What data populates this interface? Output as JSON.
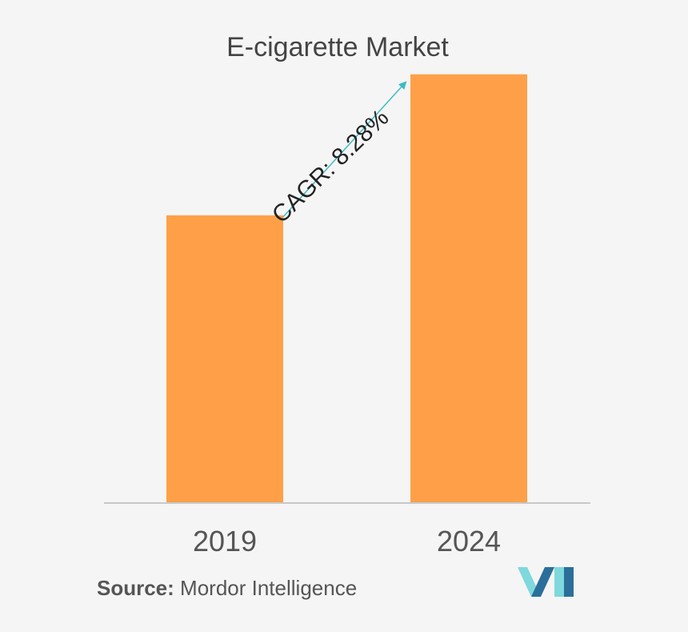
{
  "chart_data": {
    "type": "bar",
    "title": "E-cigarette Market",
    "categories": [
      "2019",
      "2024"
    ],
    "values": [
      1.0,
      1.49
    ],
    "ylim": [
      0,
      1.52
    ],
    "grid": false,
    "annotation": "CAGR: 8.28%",
    "xlabel": "",
    "ylabel": ""
  },
  "source": {
    "label": "Source:",
    "text": " Mordor Intelligence"
  },
  "logo": {
    "icon": "mordor-intelligence-logo-icon"
  },
  "colors": {
    "bar": "#ffa048",
    "arrow": "#3bbcc3",
    "axis": "#c8c8c8",
    "logo_light": "#7ed8dc",
    "logo_dark": "#2a6f9a"
  }
}
